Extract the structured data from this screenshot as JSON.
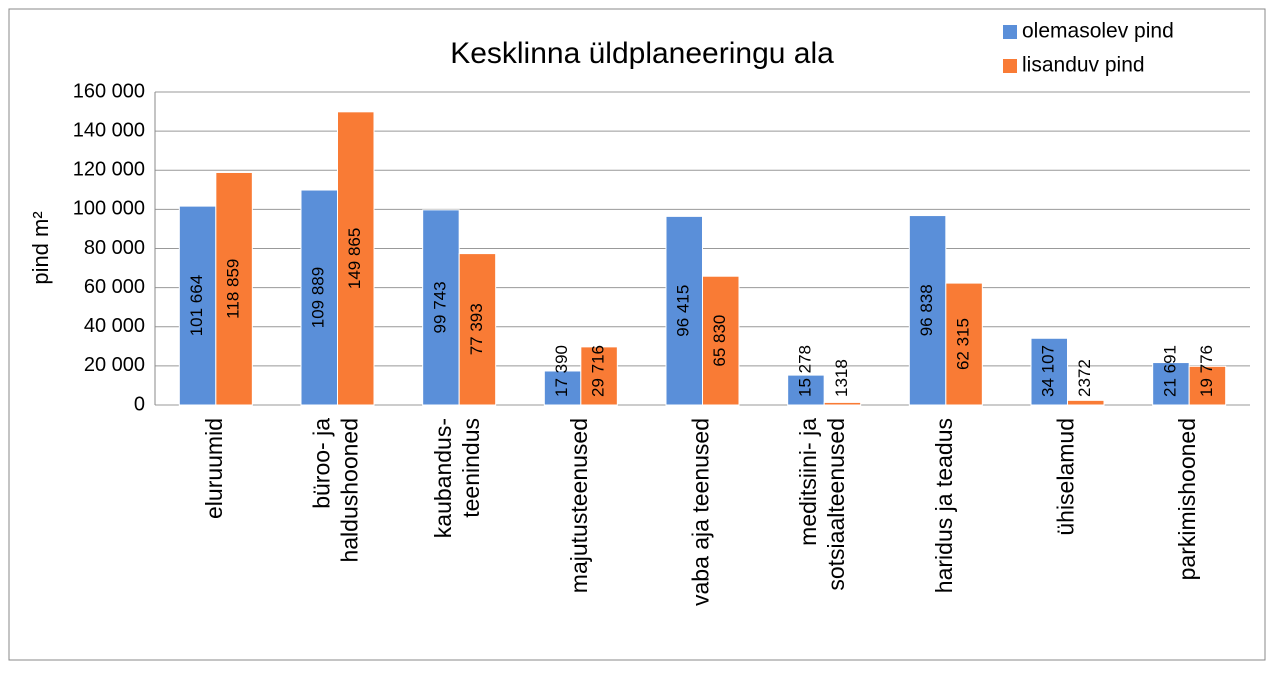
{
  "chart_data": {
    "type": "bar",
    "title": "Kesklinna üldplaneeringu ala",
    "y_label": "pind m²",
    "categories": [
      "eluruumid",
      "büroo- ja\nhaldushooned",
      "kaubandus-\nteenindus",
      "majutusteenused",
      "vaba aja teenused",
      "meditsiini- ja\nsotsiaalteenused",
      "haridus ja teadus",
      "ühiselamud",
      "parkimishooned"
    ],
    "series": [
      {
        "name": "olemasolev pind",
        "color": "#5a8fd9",
        "values": [
          101664,
          109889,
          99743,
          17390,
          96415,
          15278,
          96838,
          34107,
          21691
        ],
        "value_labels": [
          "101 664",
          "109 889",
          "99 743",
          "17 390",
          "96 415",
          "15 278",
          "96 838",
          "34 107",
          "21 691"
        ]
      },
      {
        "name": "lisanduv pind",
        "color": "#f97b35",
        "values": [
          118859,
          149865,
          77393,
          29716,
          65830,
          1318,
          62315,
          2372,
          19776
        ],
        "value_labels": [
          "118 859",
          "149 865",
          "77 393",
          "29 716",
          "65 830",
          "1318",
          "62 315",
          "2372",
          "19 776"
        ]
      }
    ],
    "ylim": [
      0,
      160000
    ],
    "yticks": [
      0,
      {
        "value": 20000,
        "label": "20 000"
      },
      {
        "value": 40000,
        "label": "40 000"
      },
      {
        "value": 60000,
        "label": "60 000"
      },
      {
        "value": 80000,
        "label": "80 000"
      },
      {
        "value": 100000,
        "label": "100 000"
      },
      {
        "value": 120000,
        "label": "120 000"
      },
      {
        "value": 140000,
        "label": "140 000"
      },
      {
        "value": 160000,
        "label": "160 000"
      }
    ],
    "grid": true,
    "legend": "top-right"
  }
}
